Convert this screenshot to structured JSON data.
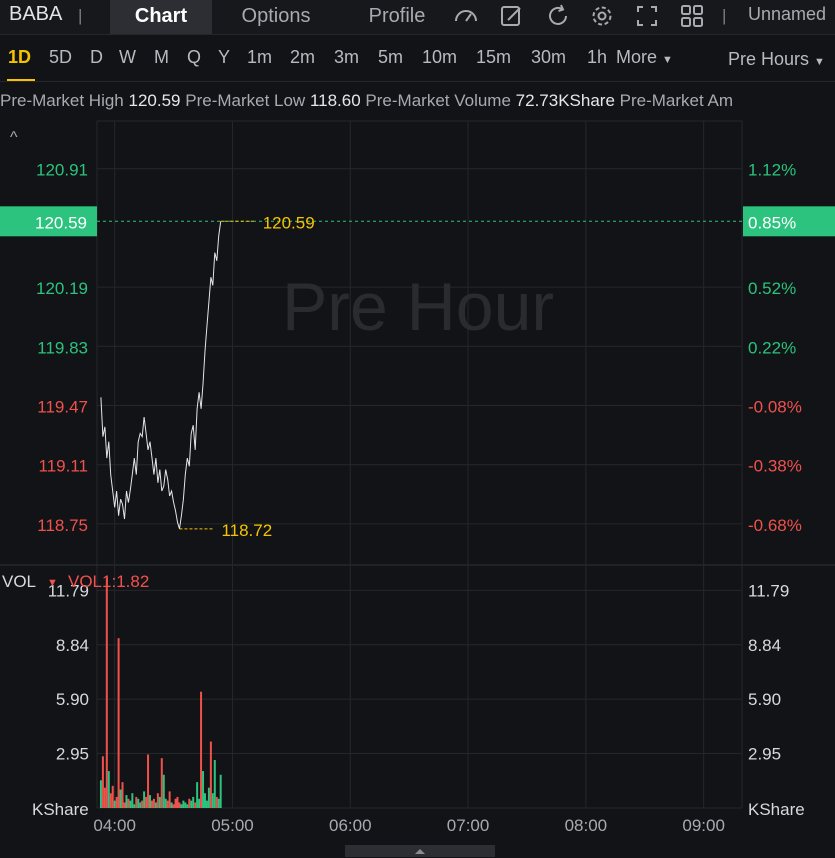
{
  "header": {
    "symbol": "BABA",
    "tabs": [
      {
        "label": "Chart",
        "active": true
      },
      {
        "label": "Options",
        "active": false
      },
      {
        "label": "Profile",
        "active": false
      }
    ],
    "tools": [
      "gauge-icon",
      "draw-icon",
      "refresh-icon",
      "settings-icon",
      "fullscreen-icon",
      "layout-grid-icon"
    ],
    "layout_name": "Unnamed"
  },
  "timeframes": {
    "items": [
      "1D",
      "5D",
      "D",
      "W",
      "M",
      "Q",
      "Y",
      "1m",
      "2m",
      "3m",
      "5m",
      "10m",
      "15m",
      "30m",
      "1h",
      "More"
    ],
    "active": "1D",
    "session": "Pre Hours"
  },
  "stats": [
    {
      "label": "Pre-Market High",
      "value": "120.59"
    },
    {
      "label": "Pre-Market Low",
      "value": "118.60"
    },
    {
      "label": "Pre-Market Volume",
      "value": "72.73KShare"
    },
    {
      "label": "Pre-Market Am",
      "value": ""
    }
  ],
  "colors": {
    "up": "#2bc37d",
    "down": "#f0514c",
    "highlight": "#f5c400",
    "current_tag": "#2bc37d"
  },
  "chart_data": [
    {
      "type": "line",
      "watermark": "Pre Hour",
      "y_left_ticks": [
        "120.91",
        "120.59",
        "120.19",
        "119.83",
        "119.47",
        "119.11",
        "118.75"
      ],
      "y_right_ticks": [
        "1.12%",
        "0.85%",
        "0.52%",
        "0.22%",
        "-0.08%",
        "-0.38%",
        "-0.68%"
      ],
      "ylim": [
        118.5,
        121.2
      ],
      "x_ticks": [
        "04:00",
        "05:00",
        "06:00",
        "07:00",
        "08:00",
        "09:00"
      ],
      "xlim_minutes": [
        0,
        330
      ],
      "current_price": "120.59",
      "low_marker": "118.72",
      "x": [
        0,
        1,
        2,
        3,
        4,
        5,
        6,
        7,
        8,
        9,
        10,
        11,
        12,
        13,
        14,
        15,
        16,
        17,
        18,
        19,
        20,
        21,
        22,
        23,
        24,
        25,
        26,
        27,
        28,
        29,
        30,
        31,
        32,
        33,
        34,
        35,
        36,
        37,
        38,
        39,
        40,
        41,
        42,
        43,
        44,
        45,
        46,
        47,
        48,
        49,
        50,
        51,
        52,
        53,
        54,
        55,
        56,
        57,
        58,
        59,
        60,
        61
      ],
      "y": [
        119.52,
        119.28,
        119.34,
        119.15,
        119.25,
        119.05,
        118.95,
        118.85,
        118.95,
        118.8,
        118.9,
        118.87,
        118.78,
        118.95,
        118.88,
        118.96,
        119.05,
        119.15,
        119.05,
        119.25,
        119.3,
        119.28,
        119.4,
        119.3,
        119.2,
        119.25,
        119.15,
        119.05,
        119.15,
        119.0,
        119.08,
        118.95,
        118.98,
        119.08,
        119.02,
        118.92,
        118.95,
        118.88,
        118.83,
        118.76,
        118.72,
        118.8,
        118.9,
        119.05,
        119.15,
        119.1,
        119.3,
        119.35,
        119.2,
        119.45,
        119.55,
        119.45,
        119.6,
        119.8,
        119.95,
        120.1,
        120.25,
        120.2,
        120.4,
        120.35,
        120.5,
        120.59
      ]
    },
    {
      "type": "bar",
      "indicator": "VOL",
      "indicator_value": "VOL1:1.82",
      "unit": "KShare",
      "y_ticks": [
        "11.79",
        "8.84",
        "5.90",
        "2.95"
      ],
      "ylim": [
        0,
        13.0
      ],
      "volumes": [
        1.5,
        2.8,
        1.1,
        12.5,
        2.0,
        0.8,
        1.2,
        0.4,
        0.6,
        9.2,
        1.0,
        1.4,
        0.3,
        0.7,
        0.5,
        0.4,
        0.8,
        0.2,
        0.6,
        0.5,
        0.3,
        0.4,
        0.9,
        0.6,
        2.9,
        0.7,
        0.4,
        0.5,
        0.3,
        0.8,
        0.6,
        2.7,
        1.8,
        0.5,
        0.4,
        0.9,
        0.3,
        0.2,
        0.5,
        0.6,
        0.3,
        0.2,
        0.4,
        0.3,
        0.2,
        0.5,
        0.4,
        0.6,
        0.3,
        1.4,
        0.5,
        6.3,
        2.0,
        0.8,
        0.4,
        1.1,
        3.6,
        0.8,
        2.6,
        0.6,
        0.5,
        1.8
      ],
      "directions": [
        "u",
        "d",
        "d",
        "d",
        "u",
        "d",
        "d",
        "u",
        "d",
        "d",
        "u",
        "d",
        "d",
        "u",
        "d",
        "u",
        "u",
        "u",
        "d",
        "u",
        "u",
        "d",
        "u",
        "d",
        "d",
        "u",
        "d",
        "d",
        "u",
        "d",
        "u",
        "d",
        "u",
        "u",
        "d",
        "d",
        "u",
        "d",
        "d",
        "d",
        "d",
        "u",
        "u",
        "u",
        "u",
        "d",
        "u",
        "u",
        "d",
        "u",
        "u",
        "d",
        "u",
        "u",
        "u",
        "u",
        "d",
        "u",
        "u",
        "d",
        "u",
        "u"
      ]
    }
  ]
}
